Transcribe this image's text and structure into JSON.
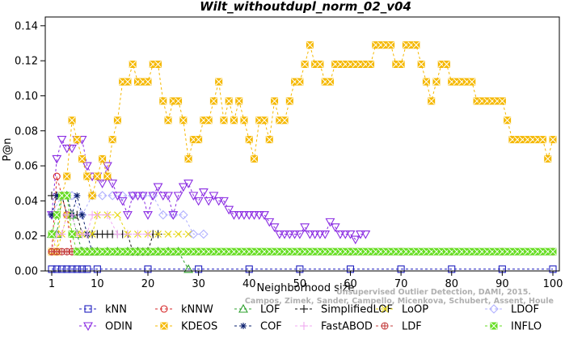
{
  "chart_data": {
    "type": "line",
    "title": "Wilt_withoutdupl_norm_02_v04",
    "xlabel": "Neighborhood size",
    "ylabel": "P@n",
    "xlim": [
      1,
      100
    ],
    "ylim": [
      0,
      0.145
    ],
    "x_ticks": [
      1,
      10,
      20,
      30,
      40,
      50,
      60,
      70,
      80,
      90,
      100
    ],
    "x_tick_labels": [
      "1",
      "10",
      "20",
      "30",
      "40",
      "50",
      "60",
      "70",
      "80",
      "90",
      "100"
    ],
    "y_ticks": [
      0,
      0.02,
      0.04,
      0.06,
      0.08,
      0.1,
      0.12,
      0.14
    ],
    "y_tick_labels": [
      "0.00",
      "0.02",
      "0.04",
      "0.06",
      "0.08",
      "0.10",
      "0.12",
      "0.14"
    ],
    "grid": false,
    "legend_position": "bottom",
    "watermark": [
      "Unsupervised Outlier Detection, DAMI, 2015.",
      "Campos, Zimek, Sander, Campello, Micenkova, Schubert, Assent, Houle"
    ],
    "series": [
      {
        "name": "kNN",
        "color": "#1f1fbf",
        "marker": "square",
        "x": [
          1,
          2,
          3,
          4,
          5,
          6,
          7,
          8,
          10,
          20,
          30,
          40,
          50,
          60,
          70,
          80,
          90,
          100
        ],
        "y": [
          0.001,
          0.001,
          0.001,
          0.001,
          0.001,
          0.001,
          0.001,
          0.001,
          0.001,
          0.001,
          0.001,
          0.001,
          0.001,
          0.001,
          0.001,
          0.001,
          0.001,
          0.001
        ]
      },
      {
        "name": "kNNW",
        "color": "#d62728",
        "marker": "circle",
        "x": [
          1,
          2,
          3,
          4,
          5,
          6,
          7,
          8,
          9,
          10,
          12,
          14,
          16,
          18,
          20,
          25,
          30,
          40,
          50,
          60,
          70,
          80,
          90,
          100
        ],
        "y": [
          0.011,
          0.054,
          0.043,
          0.032,
          0.011,
          0.011,
          0.011,
          0.011,
          0.011,
          0.011,
          0.011,
          0.011,
          0.011,
          0.011,
          0.011,
          0.011,
          0.011,
          0.011,
          0.011,
          0.011,
          0.011,
          0.011,
          0.011,
          0.011
        ]
      },
      {
        "name": "LOF",
        "color": "#2ca02c",
        "marker": "triangle-up",
        "x": [
          1,
          2,
          3,
          4,
          5,
          6,
          7,
          8,
          9,
          10,
          12,
          14,
          16,
          18,
          20,
          22,
          24,
          26,
          28
        ],
        "y": [
          0.021,
          0.021,
          0.043,
          0.043,
          0.032,
          0.021,
          0.011,
          0.011,
          0.011,
          0.011,
          0.011,
          0.011,
          0.011,
          0.011,
          0.011,
          0.011,
          0.011,
          0.011,
          0.001
        ]
      },
      {
        "name": "SimplifiedLOF",
        "color": "#111111",
        "marker": "plus",
        "x": [
          1,
          2,
          3,
          4,
          5,
          6,
          7,
          8,
          9,
          10,
          11,
          12,
          13,
          14,
          15,
          16,
          17,
          18,
          19,
          20,
          21,
          22
        ],
        "y": [
          0.043,
          0.043,
          0.043,
          0.032,
          0.032,
          0.032,
          0.021,
          0.021,
          0.021,
          0.021,
          0.021,
          0.021,
          0.021,
          0.021,
          0.021,
          0.021,
          0.011,
          0.011,
          0.011,
          0.011,
          0.021,
          0.021
        ]
      },
      {
        "name": "LoOP",
        "color": "#e5d40a",
        "marker": "cross",
        "x": [
          1,
          2,
          3,
          4,
          5,
          6,
          7,
          8,
          9,
          10,
          12,
          14,
          16,
          18,
          20,
          22,
          24,
          26,
          28
        ],
        "y": [
          0.021,
          0.011,
          0.021,
          0.032,
          0.021,
          0.021,
          0.021,
          0.021,
          0.021,
          0.032,
          0.032,
          0.032,
          0.021,
          0.021,
          0.021,
          0.021,
          0.021,
          0.021,
          0.021
        ]
      },
      {
        "name": "LDOF",
        "color": "#b0b0ff",
        "marker": "diamond",
        "x": [
          1,
          3,
          5,
          7,
          9,
          11,
          13,
          15,
          17,
          19,
          21,
          23,
          25,
          27,
          29,
          31
        ],
        "y": [
          0.032,
          0.043,
          0.043,
          0.032,
          0.043,
          0.043,
          0.043,
          0.043,
          0.043,
          0.043,
          0.043,
          0.032,
          0.032,
          0.032,
          0.021,
          0.021
        ]
      },
      {
        "name": "ODIN",
        "color": "#8a2be2",
        "marker": "triangle-down",
        "x": [
          1,
          2,
          3,
          4,
          5,
          6,
          7,
          8,
          9,
          10,
          11,
          12,
          13,
          14,
          15,
          16,
          17,
          18,
          19,
          20,
          21,
          22,
          23,
          24,
          25,
          26,
          27,
          28,
          29,
          30,
          31,
          32,
          33,
          34,
          35,
          36,
          37,
          38,
          39,
          40,
          41,
          42,
          43,
          44,
          45,
          46,
          47,
          48,
          49,
          50,
          51,
          52,
          53,
          54,
          55,
          56,
          57,
          58,
          59,
          60,
          61,
          62,
          63
        ],
        "y": [
          0.032,
          0.064,
          0.075,
          0.07,
          0.07,
          0.075,
          0.075,
          0.06,
          0.054,
          0.054,
          0.05,
          0.06,
          0.05,
          0.043,
          0.04,
          0.032,
          0.043,
          0.043,
          0.043,
          0.032,
          0.043,
          0.048,
          0.043,
          0.043,
          0.032,
          0.043,
          0.048,
          0.05,
          0.043,
          0.04,
          0.045,
          0.04,
          0.043,
          0.04,
          0.04,
          0.035,
          0.032,
          0.032,
          0.032,
          0.032,
          0.032,
          0.032,
          0.032,
          0.028,
          0.025,
          0.021,
          0.021,
          0.021,
          0.021,
          0.021,
          0.025,
          0.021,
          0.021,
          0.021,
          0.021,
          0.028,
          0.025,
          0.021,
          0.021,
          0.021,
          0.018,
          0.021,
          0.021
        ]
      },
      {
        "name": "KDEOS",
        "color": "#f5b800",
        "marker": "square-x",
        "x": [
          1,
          2,
          3,
          4,
          5,
          6,
          7,
          8,
          9,
          10,
          11,
          12,
          13,
          14,
          15,
          16,
          17,
          18,
          19,
          20,
          21,
          22,
          23,
          24,
          25,
          26,
          27,
          28,
          29,
          30,
          31,
          32,
          33,
          34,
          35,
          36,
          37,
          38,
          39,
          40,
          41,
          42,
          43,
          44,
          45,
          46,
          47,
          48,
          49,
          50,
          51,
          52,
          53,
          54,
          55,
          56,
          57,
          58,
          59,
          60,
          61,
          62,
          63,
          64,
          65,
          66,
          67,
          68,
          69,
          70,
          71,
          72,
          73,
          74,
          75,
          76,
          77,
          78,
          79,
          80,
          81,
          82,
          83,
          84,
          85,
          86,
          87,
          88,
          89,
          90,
          91,
          92,
          93,
          94,
          95,
          96,
          97,
          98,
          99,
          100
        ],
        "y": [
          0.011,
          0.011,
          0.043,
          0.054,
          0.086,
          0.075,
          0.064,
          0.054,
          0.043,
          0.054,
          0.064,
          0.054,
          0.075,
          0.086,
          0.108,
          0.108,
          0.118,
          0.108,
          0.108,
          0.108,
          0.118,
          0.118,
          0.097,
          0.086,
          0.097,
          0.097,
          0.086,
          0.064,
          0.075,
          0.075,
          0.086,
          0.086,
          0.097,
          0.108,
          0.086,
          0.097,
          0.086,
          0.097,
          0.086,
          0.075,
          0.064,
          0.086,
          0.086,
          0.075,
          0.097,
          0.086,
          0.086,
          0.097,
          0.108,
          0.108,
          0.118,
          0.129,
          0.118,
          0.118,
          0.108,
          0.108,
          0.118,
          0.118,
          0.118,
          0.118,
          0.118,
          0.118,
          0.118,
          0.118,
          0.129,
          0.129,
          0.129,
          0.129,
          0.118,
          0.118,
          0.129,
          0.129,
          0.129,
          0.118,
          0.108,
          0.097,
          0.108,
          0.118,
          0.118,
          0.108,
          0.108,
          0.108,
          0.108,
          0.108,
          0.097,
          0.097,
          0.097,
          0.097,
          0.097,
          0.097,
          0.086,
          0.075,
          0.075,
          0.075,
          0.075,
          0.075,
          0.075,
          0.075,
          0.064,
          0.075
        ]
      },
      {
        "name": "COF",
        "color": "#0a1f6e",
        "marker": "asterisk",
        "x": [
          1,
          2,
          3,
          4,
          5,
          6,
          7,
          8,
          9,
          10,
          12,
          14,
          16,
          18,
          20
        ],
        "y": [
          0.032,
          0.043,
          0.043,
          0.043,
          0.032,
          0.043,
          0.032,
          0.021,
          0.011,
          0.011,
          0.011,
          0.011,
          0.011,
          0.011,
          0.011
        ]
      },
      {
        "name": "FastABOD",
        "color": "#f0a8f0",
        "marker": "plus",
        "x": [
          1,
          2,
          3,
          4,
          5,
          6,
          7,
          8,
          9,
          10,
          12,
          14,
          16,
          18,
          20
        ],
        "y": [
          0.011,
          0.021,
          0.021,
          0.032,
          0.032,
          0.021,
          0.021,
          0.021,
          0.032,
          0.032,
          0.032,
          0.021,
          0.021,
          0.021,
          0.021
        ]
      },
      {
        "name": "LDF",
        "color": "#c43c3c",
        "marker": "circle-plus",
        "x": [
          1,
          2,
          3,
          4,
          5,
          6,
          7,
          8,
          9,
          10,
          20,
          30,
          40,
          50,
          60,
          70,
          80,
          90,
          100
        ],
        "y": [
          0.011,
          0.011,
          0.011,
          0.011,
          0.011,
          0.011,
          0.011,
          0.011,
          0.011,
          0.011,
          0.011,
          0.011,
          0.011,
          0.011,
          0.011,
          0.011,
          0.011,
          0.011,
          0.011
        ]
      },
      {
        "name": "INFLO",
        "color": "#66dd22",
        "marker": "square-x",
        "x": [
          1,
          2,
          3,
          4,
          5,
          6,
          7,
          8,
          9,
          10,
          11,
          12,
          13,
          14,
          15,
          16,
          17,
          18,
          19,
          20,
          21,
          22,
          23,
          24,
          25,
          26,
          27,
          28,
          29,
          30,
          31,
          32,
          33,
          34,
          35,
          36,
          37,
          38,
          39,
          40,
          41,
          42,
          43,
          44,
          45,
          46,
          47,
          48,
          49,
          50,
          51,
          52,
          53,
          54,
          55,
          56,
          57,
          58,
          59,
          60,
          61,
          62,
          63,
          64,
          65,
          66,
          67,
          68,
          69,
          70,
          71,
          72,
          73,
          74,
          75,
          76,
          77,
          78,
          79,
          80,
          81,
          82,
          83,
          84,
          85,
          86,
          87,
          88,
          89,
          90,
          91,
          92,
          93,
          94,
          95,
          96,
          97,
          98,
          99,
          100
        ],
        "y": [
          0.021,
          0.032,
          0.043,
          0.043,
          0.021,
          0.011,
          0.011,
          0.011,
          0.011,
          0.011,
          0.011,
          0.011,
          0.011,
          0.011,
          0.011,
          0.011,
          0.011,
          0.011,
          0.011,
          0.011,
          0.011,
          0.011,
          0.011,
          0.011,
          0.011,
          0.011,
          0.011,
          0.011,
          0.011,
          0.011,
          0.011,
          0.011,
          0.011,
          0.011,
          0.011,
          0.011,
          0.011,
          0.011,
          0.011,
          0.011,
          0.011,
          0.011,
          0.011,
          0.011,
          0.011,
          0.011,
          0.011,
          0.011,
          0.011,
          0.011,
          0.011,
          0.011,
          0.011,
          0.011,
          0.011,
          0.011,
          0.011,
          0.011,
          0.011,
          0.011,
          0.011,
          0.011,
          0.011,
          0.011,
          0.011,
          0.011,
          0.011,
          0.011,
          0.011,
          0.011,
          0.011,
          0.011,
          0.011,
          0.011,
          0.011,
          0.011,
          0.011,
          0.011,
          0.011,
          0.011,
          0.011,
          0.011,
          0.011,
          0.011,
          0.011,
          0.011,
          0.011,
          0.011,
          0.011,
          0.011,
          0.011,
          0.011,
          0.011,
          0.011,
          0.011,
          0.011,
          0.011,
          0.011,
          0.011,
          0.011
        ]
      }
    ],
    "legend_order": [
      "kNN",
      "kNNW",
      "LOF",
      "SimplifiedLOF",
      "LoOP",
      "LDOF",
      "ODIN",
      "KDEOS",
      "COF",
      "FastABOD",
      "LDF",
      "INFLO"
    ]
  }
}
